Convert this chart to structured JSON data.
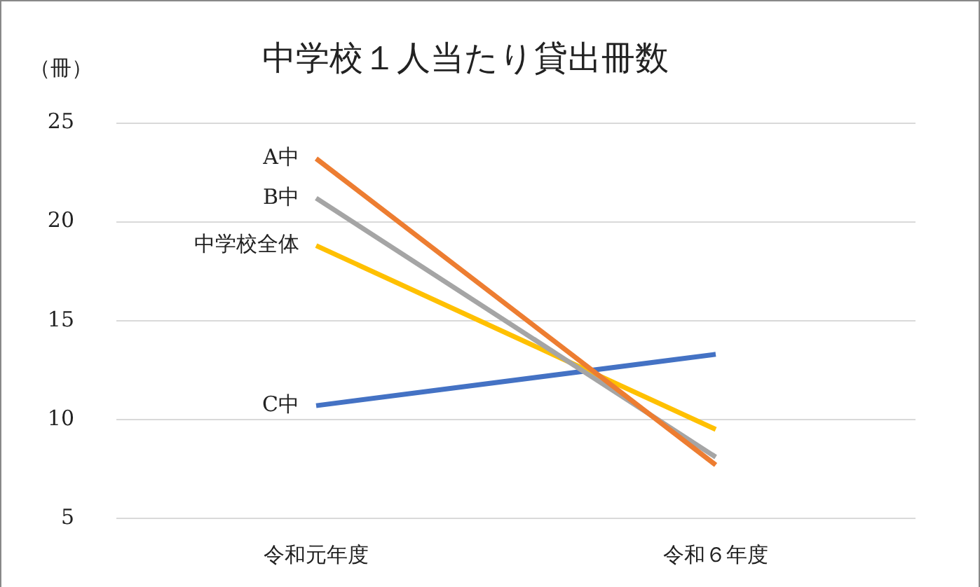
{
  "chart_data": {
    "type": "line",
    "title": "中学校１人当たり貸出冊数",
    "ylabel": "（冊）",
    "categories": [
      "令和元年度",
      "令和６年度"
    ],
    "series": [
      {
        "name": "A中",
        "color": "#ed7d31",
        "values": [
          23.2,
          7.7
        ]
      },
      {
        "name": "B中",
        "color": "#a5a5a5",
        "values": [
          21.2,
          8.1
        ]
      },
      {
        "name": "中学校全体",
        "color": "#ffc000",
        "values": [
          18.8,
          9.5
        ]
      },
      {
        "name": "C中",
        "color": "#4472c4",
        "values": [
          10.7,
          13.3
        ]
      }
    ],
    "ylim": [
      5,
      25
    ],
    "yticks": [
      5,
      10,
      15,
      20,
      25
    ],
    "grid": "y",
    "legend": false,
    "marker": "none",
    "line_style": "solid"
  }
}
